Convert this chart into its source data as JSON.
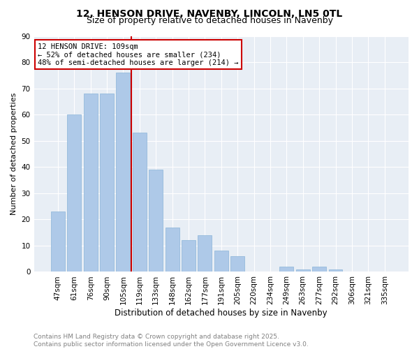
{
  "title": "12, HENSON DRIVE, NAVENBY, LINCOLN, LN5 0TL",
  "subtitle": "Size of property relative to detached houses in Navenby",
  "xlabel": "Distribution of detached houses by size in Navenby",
  "ylabel": "Number of detached properties",
  "categories": [
    "47sqm",
    "61sqm",
    "76sqm",
    "90sqm",
    "105sqm",
    "119sqm",
    "133sqm",
    "148sqm",
    "162sqm",
    "177sqm",
    "191sqm",
    "205sqm",
    "220sqm",
    "234sqm",
    "249sqm",
    "263sqm",
    "277sqm",
    "292sqm",
    "306sqm",
    "321sqm",
    "335sqm"
  ],
  "values": [
    23,
    60,
    68,
    68,
    76,
    53,
    39,
    17,
    12,
    14,
    8,
    6,
    0,
    0,
    2,
    1,
    2,
    1,
    0,
    0,
    0
  ],
  "bar_color": "#aec9e8",
  "bar_edgecolor": "#8ab4d8",
  "vline_x": 4.5,
  "vline_color": "#cc0000",
  "annotation_text": "12 HENSON DRIVE: 109sqm\n← 52% of detached houses are smaller (234)\n48% of semi-detached houses are larger (214) →",
  "annotation_box_color": "#cc0000",
  "ylim": [
    0,
    90
  ],
  "yticks": [
    0,
    10,
    20,
    30,
    40,
    50,
    60,
    70,
    80,
    90
  ],
  "bg_color": "#e8eef5",
  "footer": "Contains HM Land Registry data © Crown copyright and database right 2025.\nContains public sector information licensed under the Open Government Licence v3.0.",
  "title_fontsize": 10,
  "subtitle_fontsize": 9,
  "xlabel_fontsize": 8.5,
  "ylabel_fontsize": 8,
  "tick_fontsize": 7.5,
  "annot_fontsize": 7.5,
  "footer_fontsize": 6.5
}
